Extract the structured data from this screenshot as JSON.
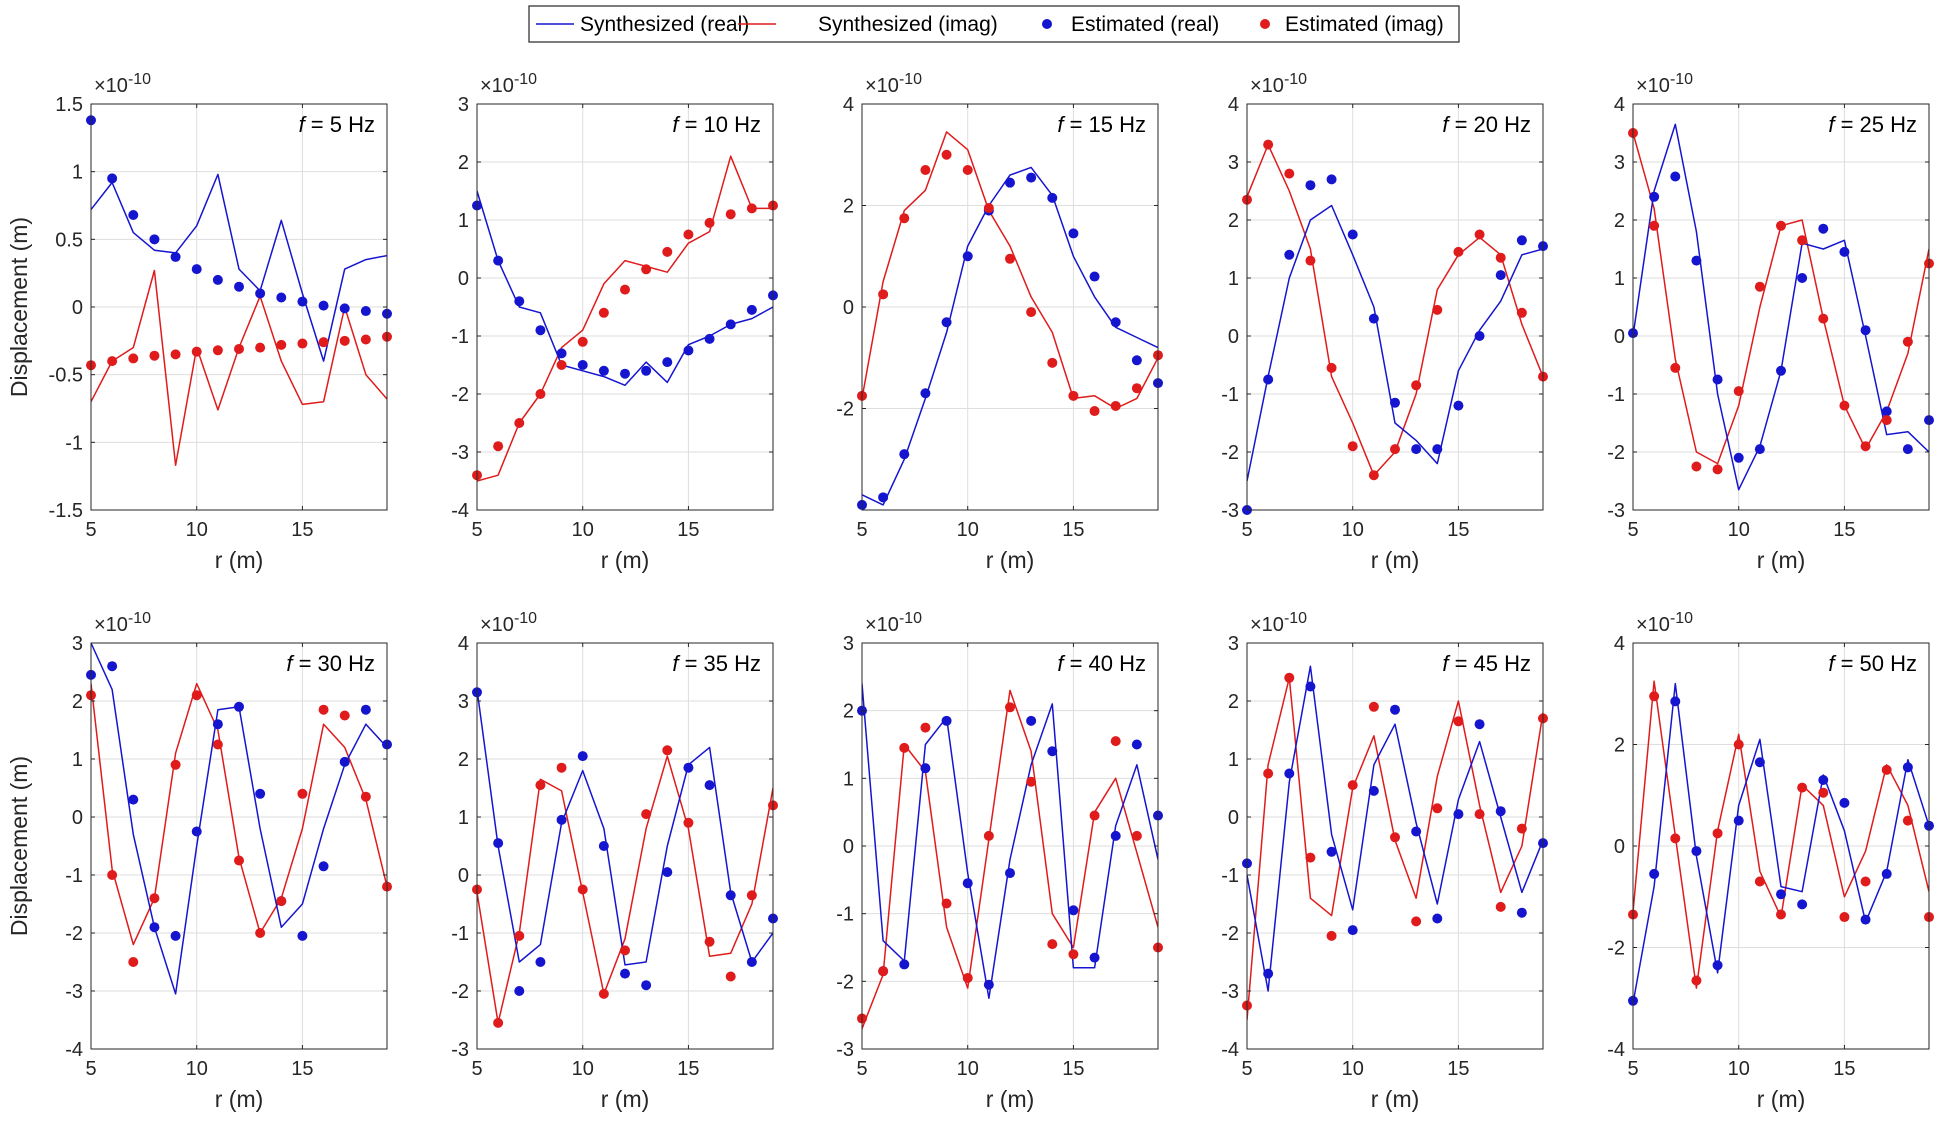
{
  "chart_data": {
    "type": "line",
    "layout": "2x5 grid of subplots",
    "colors": {
      "real": "#1515d0",
      "imag": "#e01b1b",
      "grid": "#dedede",
      "axis": "#262626"
    },
    "legend": {
      "placement": "top-center",
      "entries": [
        {
          "label": "Synthesized (real)",
          "style": "line",
          "series": "real"
        },
        {
          "label": "Synthesized (imag)",
          "style": "line",
          "series": "imag"
        },
        {
          "label": "Estimated (real)",
          "style": "marker",
          "series": "real"
        },
        {
          "label": "Estimated (imag)",
          "style": "marker",
          "series": "imag"
        }
      ]
    },
    "xlabel": "r (m)",
    "ylabel": "Displacement (m)",
    "exponent_label": "×10",
    "exponent_power": "-10",
    "xlim": [
      5,
      19
    ],
    "x": [
      5,
      6,
      7,
      8,
      9,
      10,
      11,
      12,
      13,
      14,
      15,
      16,
      17,
      18,
      19
    ],
    "xticks": [
      5,
      10,
      15
    ],
    "panels": [
      {
        "title_prefix": "f",
        "title_suffix": " = 5 Hz",
        "ylim": [
          -1.5,
          1.5
        ],
        "yticks": [
          -1.5,
          -1,
          -0.5,
          0,
          0.5,
          1,
          1.5
        ],
        "yticklabels": [
          "-1.5",
          "-1",
          "-0.5",
          "0",
          "0.5",
          "1",
          "1.5"
        ],
        "synth_real": [
          0.72,
          0.92,
          0.55,
          0.42,
          0.4,
          0.6,
          0.98,
          0.28,
          0.12,
          0.64,
          0.1,
          -0.4,
          0.28,
          0.35,
          0.38
        ],
        "synth_imag": [
          -0.7,
          -0.4,
          -0.3,
          0.27,
          -1.17,
          -0.3,
          -0.76,
          -0.3,
          0.08,
          -0.4,
          -0.72,
          -0.7,
          0.0,
          -0.5,
          -0.68
        ],
        "est_real": [
          1.38,
          0.95,
          0.68,
          0.5,
          0.37,
          0.28,
          0.2,
          0.15,
          0.1,
          0.07,
          0.04,
          0.01,
          -0.01,
          -0.03,
          -0.05
        ],
        "est_imag": [
          -0.43,
          -0.4,
          -0.38,
          -0.36,
          -0.35,
          -0.33,
          -0.32,
          -0.31,
          -0.3,
          -0.28,
          -0.27,
          -0.26,
          -0.25,
          -0.24,
          -0.22
        ]
      },
      {
        "title_prefix": "f",
        "title_suffix": " = 10 Hz",
        "ylim": [
          -4,
          3
        ],
        "yticks": [
          -4,
          -3,
          -2,
          -1,
          0,
          1,
          2,
          3
        ],
        "yticklabels": [
          "-4",
          "-3",
          "-2",
          "-1",
          "0",
          "1",
          "2",
          "3"
        ],
        "synth_real": [
          1.5,
          0.3,
          -0.5,
          -0.6,
          -1.5,
          -1.6,
          -1.7,
          -1.85,
          -1.45,
          -1.8,
          -1.15,
          -1.0,
          -0.8,
          -0.7,
          -0.5
        ],
        "synth_imag": [
          -3.5,
          -3.4,
          -2.5,
          -2.0,
          -1.2,
          -0.9,
          -0.1,
          0.3,
          0.2,
          0.1,
          0.6,
          0.8,
          2.1,
          1.2,
          1.2
        ],
        "est_real": [
          1.25,
          0.3,
          -0.4,
          -0.9,
          -1.3,
          -1.5,
          -1.6,
          -1.65,
          -1.6,
          -1.45,
          -1.25,
          -1.05,
          -0.8,
          -0.55,
          -0.3
        ],
        "est_imag": [
          -3.4,
          -2.9,
          -2.5,
          -2.0,
          -1.5,
          -1.1,
          -0.6,
          -0.2,
          0.15,
          0.45,
          0.75,
          0.95,
          1.1,
          1.2,
          1.25
        ]
      },
      {
        "title_prefix": "f",
        "title_suffix": " = 15 Hz",
        "ylim": [
          -4,
          4
        ],
        "yticks": [
          -4,
          -2,
          0,
          2,
          4
        ],
        "yticklabels": [
          "",
          "-2",
          "0",
          "2",
          "4"
        ],
        "synth_real": [
          -3.7,
          -3.9,
          -3.0,
          -1.8,
          -0.5,
          1.2,
          2.0,
          2.6,
          2.75,
          2.2,
          1.0,
          0.2,
          -0.4,
          -0.6,
          -0.8
        ],
        "synth_imag": [
          -1.8,
          0.5,
          1.9,
          2.3,
          3.45,
          3.1,
          1.9,
          1.2,
          0.2,
          -0.5,
          -1.8,
          -1.75,
          -2.0,
          -1.8,
          -1.0
        ],
        "est_real": [
          -3.9,
          -3.75,
          -2.9,
          -1.7,
          -0.3,
          1.0,
          1.9,
          2.45,
          2.55,
          2.15,
          1.45,
          0.6,
          -0.3,
          -1.05,
          -1.5
        ],
        "est_imag": [
          -1.75,
          0.25,
          1.75,
          2.7,
          3.0,
          2.7,
          1.95,
          0.95,
          -0.1,
          -1.1,
          -1.75,
          -2.05,
          -1.95,
          -1.6,
          -0.95
        ]
      },
      {
        "title_prefix": "f",
        "title_suffix": " = 20 Hz",
        "ylim": [
          -3,
          4
        ],
        "yticks": [
          -3,
          -2,
          -1,
          0,
          1,
          2,
          3,
          4
        ],
        "yticklabels": [
          "-3",
          "-2",
          "-1",
          "0",
          "1",
          "2",
          "3",
          "4"
        ],
        "synth_real": [
          -2.5,
          -0.7,
          1.0,
          2.0,
          2.25,
          1.4,
          0.5,
          -1.5,
          -1.8,
          -2.2,
          -0.6,
          0.1,
          0.6,
          1.4,
          1.5
        ],
        "synth_imag": [
          2.4,
          3.3,
          2.5,
          1.5,
          -0.7,
          -1.5,
          -2.4,
          -2.0,
          -1.0,
          0.8,
          1.4,
          1.7,
          1.4,
          0.2,
          -0.7
        ],
        "est_real": [
          -3.0,
          -0.75,
          1.4,
          2.6,
          2.7,
          1.75,
          0.3,
          -1.15,
          -1.95,
          -1.95,
          -1.2,
          0.0,
          1.05,
          1.65,
          1.55
        ],
        "est_imag": [
          2.35,
          3.3,
          2.8,
          1.3,
          -0.55,
          -1.9,
          -2.4,
          -1.95,
          -0.85,
          0.45,
          1.45,
          1.75,
          1.35,
          0.4,
          -0.7
        ]
      },
      {
        "title_prefix": "f",
        "title_suffix": " = 25 Hz",
        "ylim": [
          -3,
          4
        ],
        "yticks": [
          -3,
          -2,
          -1,
          0,
          1,
          2,
          3,
          4
        ],
        "yticklabels": [
          "-3",
          "-2",
          "-1",
          "0",
          "1",
          "2",
          "3",
          "4"
        ],
        "synth_real": [
          0.0,
          2.5,
          3.65,
          1.8,
          -1.0,
          -2.65,
          -1.9,
          -0.6,
          1.6,
          1.5,
          1.65,
          0.0,
          -1.7,
          -1.65,
          -2.0
        ],
        "synth_imag": [
          3.5,
          2.2,
          -0.4,
          -2.0,
          -2.2,
          -1.2,
          0.5,
          1.9,
          2.0,
          0.3,
          -1.2,
          -1.95,
          -1.3,
          -0.3,
          1.5
        ],
        "est_real": [
          0.05,
          2.4,
          2.75,
          1.3,
          -0.75,
          -2.1,
          -1.95,
          -0.6,
          1.0,
          1.85,
          1.45,
          0.1,
          -1.3,
          -1.95,
          -1.45
        ],
        "est_imag": [
          3.5,
          1.9,
          -0.55,
          -2.25,
          -2.3,
          -0.95,
          0.85,
          1.9,
          1.65,
          0.3,
          -1.2,
          -1.9,
          -1.45,
          -0.1,
          1.25
        ]
      },
      {
        "title_prefix": "f",
        "title_suffix": " = 30 Hz",
        "ylim": [
          -4,
          3
        ],
        "yticks": [
          -4,
          -3,
          -2,
          -1,
          0,
          1,
          2,
          3
        ],
        "yticklabels": [
          "-4",
          "-3",
          "-2",
          "-1",
          "0",
          "1",
          "2",
          "3"
        ],
        "synth_real": [
          3.0,
          2.2,
          -0.3,
          -1.9,
          -3.05,
          -0.5,
          1.85,
          1.9,
          -0.2,
          -1.9,
          -1.5,
          -0.2,
          0.9,
          1.6,
          1.2
        ],
        "synth_imag": [
          2.3,
          -0.9,
          -2.2,
          -1.4,
          1.1,
          2.3,
          1.5,
          -0.7,
          -2.0,
          -1.4,
          -0.2,
          1.6,
          1.2,
          0.3,
          -1.2
        ],
        "est_real": [
          2.45,
          2.6,
          0.3,
          -1.9,
          -2.05,
          -0.25,
          1.6,
          1.9,
          0.4,
          -1.45,
          -2.05,
          -0.85,
          0.95,
          1.85,
          1.25
        ],
        "est_imag": [
          2.1,
          -1.0,
          -2.5,
          -1.4,
          0.9,
          2.1,
          1.25,
          -0.75,
          -2.0,
          -1.45,
          0.4,
          1.85,
          1.75,
          0.35,
          -1.2
        ]
      },
      {
        "title_prefix": "f",
        "title_suffix": " = 35 Hz",
        "ylim": [
          -3,
          4
        ],
        "yticks": [
          -3,
          -2,
          -1,
          0,
          1,
          2,
          3,
          4
        ],
        "yticklabels": [
          "-3",
          "-2",
          "-1",
          "0",
          "1",
          "2",
          "3",
          "4"
        ],
        "synth_real": [
          3.2,
          0.5,
          -1.5,
          -1.2,
          0.9,
          1.8,
          0.8,
          -1.55,
          -1.5,
          0.5,
          1.9,
          2.2,
          -0.3,
          -1.5,
          -1.0
        ],
        "synth_imag": [
          -0.3,
          -2.55,
          -1.0,
          1.65,
          1.45,
          -0.3,
          -2.05,
          -1.1,
          0.8,
          2.05,
          0.8,
          -1.4,
          -1.35,
          -0.5,
          1.5
        ],
        "est_real": [
          3.15,
          0.55,
          -2.0,
          -1.5,
          0.95,
          2.05,
          0.5,
          -1.7,
          -1.9,
          0.05,
          1.85,
          1.55,
          -0.35,
          -1.5,
          -0.75
        ],
        "est_imag": [
          -0.25,
          -2.55,
          -1.05,
          1.55,
          1.85,
          -0.25,
          -2.05,
          -1.3,
          1.05,
          2.15,
          0.9,
          -1.15,
          -1.75,
          -0.35,
          1.2
        ]
      },
      {
        "title_prefix": "f",
        "title_suffix": " = 40 Hz",
        "ylim": [
          -3,
          3
        ],
        "yticks": [
          -3,
          -2,
          -1,
          0,
          1,
          2,
          3
        ],
        "yticklabels": [
          "-3",
          "-2",
          "-1",
          "0",
          "1",
          "2",
          "3"
        ],
        "synth_real": [
          2.4,
          -1.4,
          -1.7,
          1.5,
          1.9,
          -0.4,
          -2.25,
          -0.2,
          1.2,
          2.1,
          -1.8,
          -1.8,
          0.3,
          1.2,
          -0.2
        ],
        "synth_imag": [
          -2.7,
          -1.9,
          1.5,
          1.1,
          -1.2,
          -2.1,
          0.1,
          2.3,
          1.4,
          -1.0,
          -1.5,
          0.5,
          1.0,
          -0.1,
          -1.2
        ],
        "est_real": [
          2.0,
          -1.85,
          -1.75,
          1.15,
          1.85,
          -0.55,
          -2.05,
          -0.4,
          1.85,
          1.4,
          -0.95,
          -1.65,
          0.15,
          1.5,
          0.45
        ],
        "est_imag": [
          -2.55,
          -1.85,
          1.45,
          1.75,
          -0.85,
          -1.95,
          0.15,
          2.05,
          0.95,
          -1.45,
          -1.6,
          0.45,
          1.55,
          0.15,
          -1.5
        ]
      },
      {
        "title_prefix": "f",
        "title_suffix": " = 45 Hz",
        "ylim": [
          -4,
          3
        ],
        "yticks": [
          -4,
          -3,
          -2,
          -1,
          0,
          1,
          2,
          3
        ],
        "yticklabels": [
          "-4",
          "-3",
          "-2",
          "-1",
          "0",
          "1",
          "2",
          "3"
        ],
        "synth_real": [
          -1.0,
          -3.0,
          0.6,
          2.6,
          -0.3,
          -1.6,
          0.9,
          1.6,
          -0.1,
          -1.5,
          0.3,
          1.3,
          0.0,
          -1.3,
          -0.4
        ],
        "synth_imag": [
          -3.5,
          0.9,
          2.4,
          -1.4,
          -1.7,
          0.5,
          1.4,
          -0.4,
          -1.4,
          0.7,
          2.0,
          0.2,
          -1.3,
          -0.5,
          1.8
        ],
        "est_real": [
          -0.8,
          -2.7,
          0.75,
          2.25,
          -0.6,
          -1.95,
          0.45,
          1.85,
          -0.25,
          -1.75,
          0.05,
          1.6,
          0.1,
          -1.65,
          -0.45
        ],
        "est_imag": [
          -3.25,
          0.75,
          2.4,
          -0.7,
          -2.05,
          0.55,
          1.9,
          -0.35,
          -1.8,
          0.15,
          1.65,
          0.05,
          -1.55,
          -0.2,
          1.7
        ]
      },
      {
        "title_prefix": "f",
        "title_suffix": " = 50 Hz",
        "ylim": [
          -4,
          4
        ],
        "yticks": [
          -4,
          -2,
          0,
          2,
          4
        ],
        "yticklabels": [
          "-4",
          "-2",
          "0",
          "2",
          "4"
        ],
        "synth_real": [
          -3.1,
          -0.8,
          3.2,
          -0.2,
          -2.5,
          0.8,
          2.1,
          -0.8,
          -0.9,
          1.4,
          0.3,
          -1.5,
          -0.5,
          1.7,
          0.4
        ],
        "synth_imag": [
          -1.3,
          3.25,
          0.2,
          -2.8,
          0.3,
          2.2,
          -0.5,
          -1.4,
          1.2,
          0.8,
          -1.0,
          -0.1,
          1.6,
          0.8,
          -0.9
        ],
        "est_real": [
          -3.05,
          -0.55,
          2.85,
          -0.1,
          -2.35,
          0.5,
          1.65,
          -0.95,
          -1.15,
          1.3,
          0.85,
          -1.45,
          -0.55,
          1.55,
          0.4
        ],
        "est_imag": [
          -1.35,
          2.95,
          0.15,
          -2.65,
          0.25,
          2.0,
          -0.7,
          -1.35,
          1.15,
          1.05,
          -1.4,
          -0.7,
          1.5,
          0.5,
          -1.4
        ]
      }
    ]
  }
}
